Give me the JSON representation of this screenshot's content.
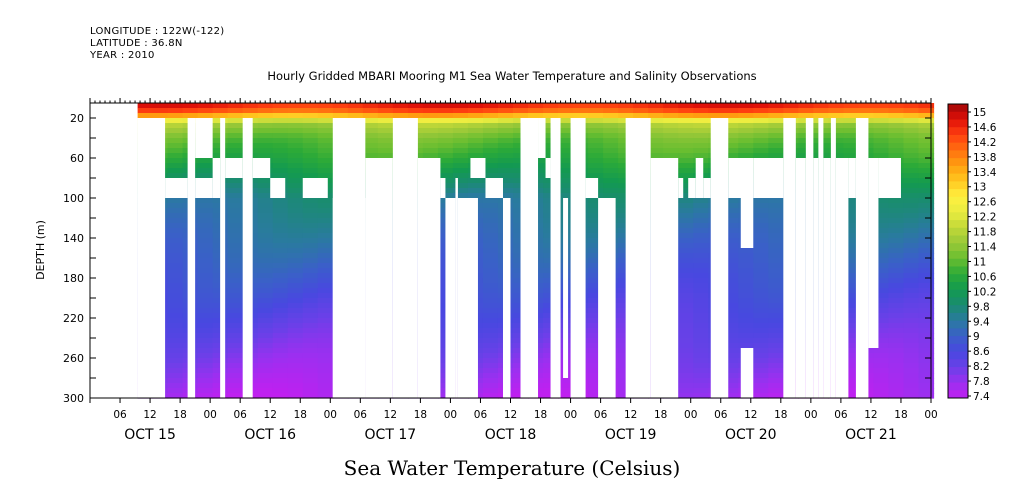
{
  "meta": {
    "longitude": "LONGITUDE : 122W(-122)",
    "latitude": "LATITUDE : 36.8N",
    "year": "YEAR : 2010"
  },
  "chart_data": {
    "type": "heatmap",
    "title": "Hourly Gridded MBARI Mooring M1 Sea Water Temperature and Salinity Observations",
    "xlabel": "Sea Water Temperature (Celsius)",
    "ylabel": "DEPTH (m)",
    "ylim": [
      300,
      5
    ],
    "y_ticks": [
      20,
      60,
      100,
      140,
      180,
      220,
      260,
      300
    ],
    "x_range_hours": [
      0,
      168
    ],
    "x_tick_labels": [
      "06",
      "12",
      "18",
      "00",
      "06",
      "12",
      "18",
      "00",
      "06",
      "12",
      "18",
      "00",
      "06",
      "12",
      "18",
      "00",
      "06",
      "12",
      "18",
      "00",
      "06",
      "12",
      "18",
      "00",
      "06",
      "12",
      "18",
      "00"
    ],
    "day_labels": [
      "OCT 15",
      "OCT 16",
      "OCT 17",
      "OCT 18",
      "OCT 19",
      "OCT 20",
      "OCT 21"
    ],
    "colorbar": {
      "min": 7.4,
      "max": 15,
      "step": 0.2,
      "labels": [
        "15",
        "14.6",
        "14.2",
        "13.8",
        "13.4",
        "13",
        "12.6",
        "12.2",
        "11.8",
        "11.4",
        "11",
        "10.6",
        "10.2",
        "9.8",
        "9.4",
        "9",
        "8.6",
        "8.2",
        "7.8",
        "7.4"
      ]
    },
    "profile": {
      "depth": [
        5,
        15,
        20,
        25,
        40,
        60,
        100,
        140,
        180,
        220,
        260,
        300
      ],
      "temperature": [
        14.6,
        13.8,
        12.6,
        11.6,
        11.0,
        10.6,
        9.6,
        9.2,
        8.8,
        8.4,
        8.0,
        7.6
      ]
    },
    "coverage": {
      "surface_band_from": 9.5,
      "top_band_depth": 20,
      "gaps": [
        {
          "x0": 0,
          "x1": 9.5,
          "d0": 5,
          "d1": 300
        },
        {
          "x0": 9.5,
          "x1": 15,
          "d0": 20,
          "d1": 300
        },
        {
          "x0": 15,
          "x1": 19.5,
          "d0": 80,
          "d1": 100
        },
        {
          "x0": 21,
          "x1": 24.5,
          "d0": 80,
          "d1": 100
        },
        {
          "x0": 19.5,
          "x1": 21,
          "d0": 20,
          "d1": 300
        },
        {
          "x0": 21,
          "x1": 24.5,
          "d0": 20,
          "d1": 60
        },
        {
          "x0": 24.5,
          "x1": 26,
          "d0": 60,
          "d1": 100
        },
        {
          "x0": 26,
          "x1": 27,
          "d0": 20,
          "d1": 300
        },
        {
          "x0": 27,
          "x1": 30.5,
          "d0": 60,
          "d1": 80
        },
        {
          "x0": 30.5,
          "x1": 32.5,
          "d0": 20,
          "d1": 300
        },
        {
          "x0": 32.5,
          "x1": 36,
          "d0": 60,
          "d1": 80
        },
        {
          "x0": 36,
          "x1": 39,
          "d0": 80,
          "d1": 100
        },
        {
          "x0": 42.5,
          "x1": 47.5,
          "d0": 80,
          "d1": 100
        },
        {
          "x0": 48.5,
          "x1": 55,
          "d0": 100,
          "d1": 300
        },
        {
          "x0": 48.5,
          "x1": 55,
          "d0": 20,
          "d1": 300
        },
        {
          "x0": 55,
          "x1": 60.5,
          "d0": 60,
          "d1": 300
        },
        {
          "x0": 60.5,
          "x1": 65.5,
          "d0": 20,
          "d1": 300
        },
        {
          "x0": 65.5,
          "x1": 70,
          "d0": 60,
          "d1": 300
        },
        {
          "x0": 70,
          "x1": 71,
          "d0": 80,
          "d1": 100
        },
        {
          "x0": 73,
          "x1": 73.5,
          "d0": 80,
          "d1": 300
        },
        {
          "x0": 71,
          "x1": 73,
          "d0": 100,
          "d1": 300
        },
        {
          "x0": 73.5,
          "x1": 77.5,
          "d0": 100,
          "d1": 300
        },
        {
          "x0": 76,
          "x1": 79,
          "d0": 60,
          "d1": 80
        },
        {
          "x0": 79,
          "x1": 82.5,
          "d0": 80,
          "d1": 100
        },
        {
          "x0": 82.5,
          "x1": 84,
          "d0": 100,
          "d1": 300
        },
        {
          "x0": 86,
          "x1": 89.5,
          "d0": 20,
          "d1": 300
        },
        {
          "x0": 89.5,
          "x1": 91,
          "d0": 20,
          "d1": 60
        },
        {
          "x0": 91,
          "x1": 92,
          "d0": 60,
          "d1": 80
        },
        {
          "x0": 92,
          "x1": 94,
          "d0": 20,
          "d1": 300
        },
        {
          "x0": 94.5,
          "x1": 95.5,
          "d0": 100,
          "d1": 280
        },
        {
          "x0": 96,
          "x1": 99,
          "d0": 20,
          "d1": 300
        },
        {
          "x0": 99,
          "x1": 101.5,
          "d0": 80,
          "d1": 100
        },
        {
          "x0": 101.5,
          "x1": 105,
          "d0": 100,
          "d1": 300
        },
        {
          "x0": 107,
          "x1": 112,
          "d0": 20,
          "d1": 300
        },
        {
          "x0": 112,
          "x1": 117.5,
          "d0": 60,
          "d1": 300
        },
        {
          "x0": 117.5,
          "x1": 118.5,
          "d0": 80,
          "d1": 100
        },
        {
          "x0": 119.5,
          "x1": 121,
          "d0": 80,
          "d1": 100
        },
        {
          "x0": 121,
          "x1": 122.5,
          "d0": 60,
          "d1": 100
        },
        {
          "x0": 122.5,
          "x1": 124,
          "d0": 80,
          "d1": 100
        },
        {
          "x0": 124,
          "x1": 127.5,
          "d0": 20,
          "d1": 300
        },
        {
          "x0": 127.5,
          "x1": 132.5,
          "d0": 60,
          "d1": 100
        },
        {
          "x0": 130,
          "x1": 132.5,
          "d0": 100,
          "d1": 150
        },
        {
          "x0": 130,
          "x1": 132.5,
          "d0": 250,
          "d1": 300
        },
        {
          "x0": 132.5,
          "x1": 138.5,
          "d0": 60,
          "d1": 100
        },
        {
          "x0": 138.5,
          "x1": 141,
          "d0": 20,
          "d1": 300
        },
        {
          "x0": 141,
          "x1": 143,
          "d0": 60,
          "d1": 300
        },
        {
          "x0": 143,
          "x1": 144.5,
          "d0": 20,
          "d1": 300
        },
        {
          "x0": 144.5,
          "x1": 145.5,
          "d0": 60,
          "d1": 300
        },
        {
          "x0": 145.5,
          "x1": 146.5,
          "d0": 20,
          "d1": 300
        },
        {
          "x0": 146.5,
          "x1": 148,
          "d0": 60,
          "d1": 300
        },
        {
          "x0": 148,
          "x1": 149,
          "d0": 20,
          "d1": 300
        },
        {
          "x0": 149,
          "x1": 151.5,
          "d0": 60,
          "d1": 300
        },
        {
          "x0": 151.5,
          "x1": 153,
          "d0": 60,
          "d1": 100
        },
        {
          "x0": 153,
          "x1": 155.5,
          "d0": 20,
          "d1": 300
        },
        {
          "x0": 155.5,
          "x1": 157.5,
          "d0": 60,
          "d1": 100
        },
        {
          "x0": 157.5,
          "x1": 162,
          "d0": 60,
          "d1": 100
        },
        {
          "x0": 155.5,
          "x1": 157.5,
          "d0": 100,
          "d1": 250
        }
      ]
    }
  }
}
